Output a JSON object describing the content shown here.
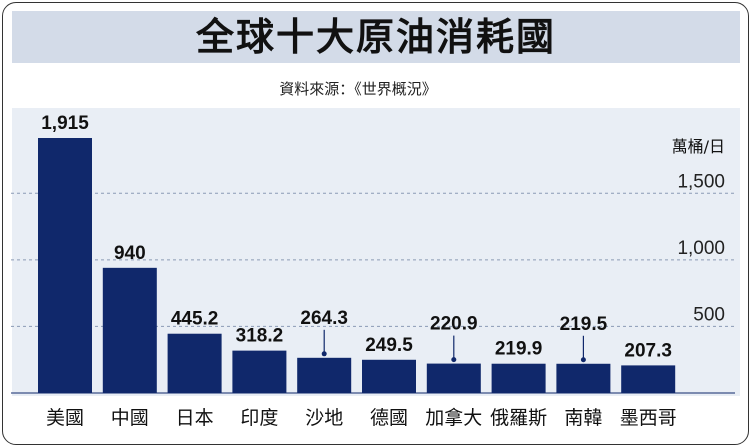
{
  "title": "全球十大原油消耗國",
  "source": "資料來源：《世界概況》",
  "chart_data": {
    "type": "bar",
    "title": "全球十大原油消耗國",
    "unit_label": "萬桶/日",
    "categories": [
      "美國",
      "中國",
      "日本",
      "印度",
      "沙地",
      "德國",
      "加拿大",
      "俄羅斯",
      "南韓",
      "墨西哥"
    ],
    "values": [
      1915,
      940,
      445.2,
      318.2,
      264.3,
      249.5,
      220.9,
      219.9,
      219.5,
      207.3
    ],
    "value_labels": [
      "1,915",
      "940",
      "445.2",
      "318.2",
      "264.3",
      "249.5",
      "220.9",
      "219.9",
      "219.5",
      "207.3"
    ],
    "ylim": [
      0,
      1915
    ],
    "yticks": [
      500,
      1000,
      1500
    ],
    "ytick_labels": [
      "500",
      "1,000",
      "1,500"
    ],
    "grid": true,
    "bar_color": "#10286b",
    "plot_background": "#e9eef5"
  }
}
